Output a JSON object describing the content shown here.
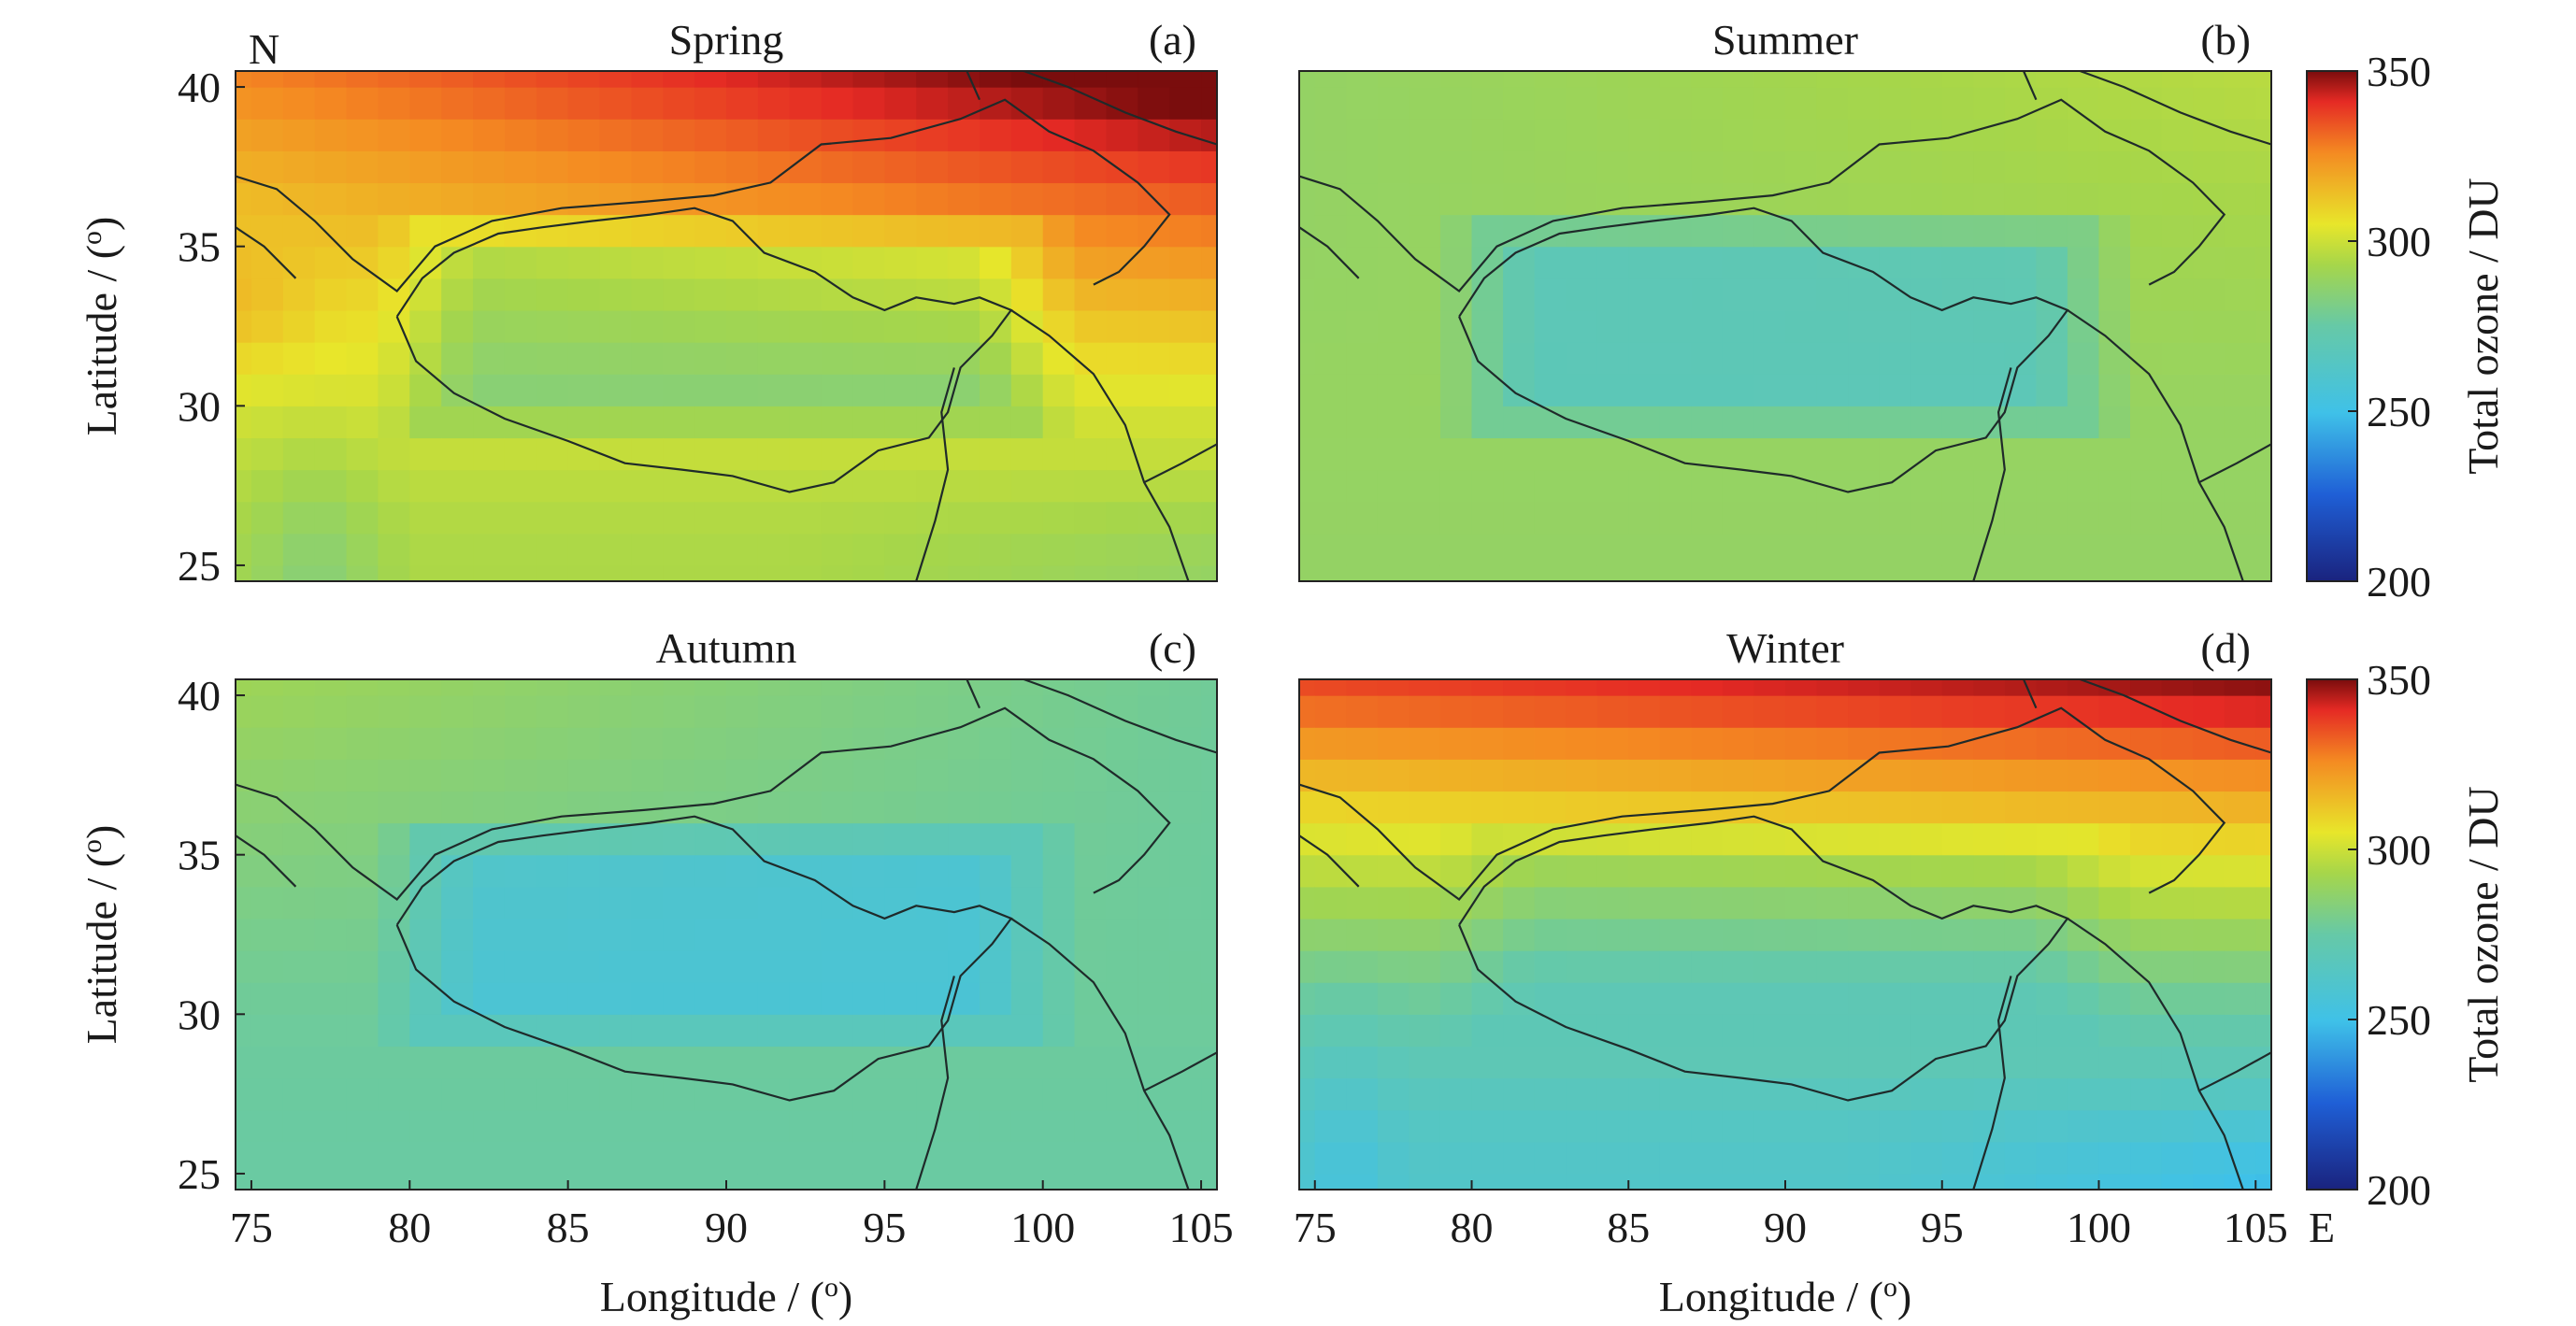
{
  "chart_data": {
    "type": "heatmap",
    "value_unit": "DU",
    "xlabel": "Longitude / (o)",
    "ylabel": "Latitude / (o)",
    "xlabel_text": "Longitude / (",
    "xlabel_sup": "o",
    "xlabel_close": ")",
    "ylabel_text": "Latitude / (",
    "ylabel_sup": "o",
    "ylabel_close": ")",
    "xlim": [
      74.5,
      105.5
    ],
    "ylim": [
      24.5,
      40.5
    ],
    "xticks": [
      "75",
      "80",
      "85",
      "90",
      "95",
      "100",
      "105"
    ],
    "xtick_values": [
      75,
      80,
      85,
      90,
      95,
      100,
      105
    ],
    "east_marker": "E",
    "yticks": [
      "25",
      "30",
      "35",
      "40"
    ],
    "ytick_values": [
      25,
      30,
      35,
      40
    ],
    "north_marker": "N",
    "colorbar": {
      "label": "Total ozone / DU",
      "range": [
        200,
        350
      ],
      "ticks": [
        "200",
        "250",
        "300",
        "350"
      ],
      "tick_values": [
        200,
        250,
        300,
        350
      ]
    },
    "grid": false,
    "panels": [
      {
        "title": "Spring",
        "letter": "(a)",
        "north_max": 340,
        "south": 294,
        "pole_ampl": 0,
        "inner": 0,
        "west_anom": 8
      },
      {
        "title": "Summer",
        "letter": "(b)",
        "north_max": 292,
        "south": 288,
        "pole_ampl": 0,
        "inner": 0,
        "west_anom": 0
      },
      {
        "title": "Autumn",
        "letter": "(c)",
        "north_max": 284,
        "south": 276,
        "pole_ampl": 0,
        "inner": 0,
        "west_anom": 0
      },
      {
        "title": "Winter",
        "letter": "(d)",
        "north_max": 340,
        "south": 262,
        "pole_ampl": 0,
        "inner": 0,
        "west_anom": 0
      }
    ]
  }
}
